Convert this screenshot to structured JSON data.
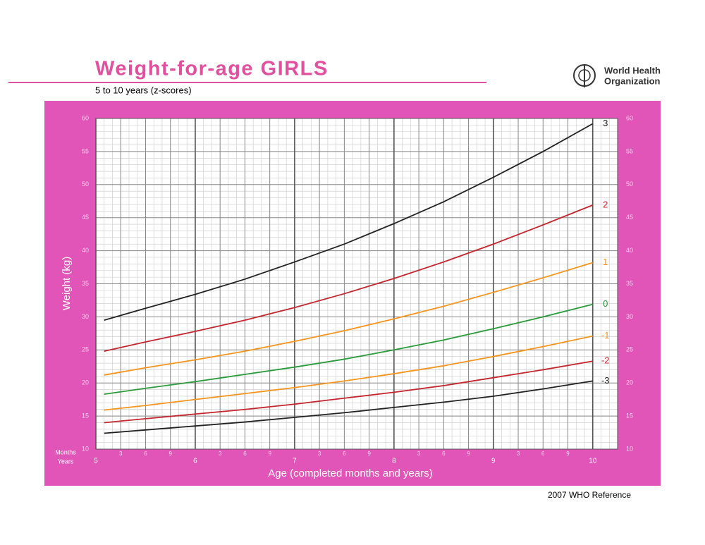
{
  "title": "Weight-for-age  GIRLS",
  "subtitle": "5 to 10 years (z-scores)",
  "org_name": [
    "World Health",
    "Organization"
  ],
  "footer": "2007 WHO Reference",
  "chart_data": {
    "type": "line",
    "x_label": "Age (completed months and years)",
    "y_label": "Weight (kg)",
    "months_label": "Months",
    "years_label": "Years",
    "x": [
      61,
      66,
      72,
      78,
      84,
      90,
      96,
      102,
      108,
      114,
      120
    ],
    "series": [
      {
        "name": "3",
        "color": "#222222",
        "values": [
          29.5,
          31.3,
          33.4,
          35.7,
          38.3,
          41.0,
          44.1,
          47.4,
          51.1,
          55.0,
          59.2
        ]
      },
      {
        "name": "2",
        "color": "#c4262e",
        "values": [
          24.8,
          26.2,
          27.8,
          29.5,
          31.4,
          33.5,
          35.8,
          38.3,
          41.0,
          43.9,
          46.9
        ]
      },
      {
        "name": "1",
        "color": "#f7941d",
        "values": [
          21.2,
          22.3,
          23.5,
          24.8,
          26.3,
          27.9,
          29.7,
          31.6,
          33.7,
          35.9,
          38.2
        ]
      },
      {
        "name": "0",
        "color": "#2a9b3a",
        "values": [
          18.3,
          19.2,
          20.2,
          21.3,
          22.4,
          23.6,
          25.0,
          26.5,
          28.2,
          30.0,
          31.9
        ]
      },
      {
        "name": "-1",
        "color": "#f7941d",
        "values": [
          15.9,
          16.6,
          17.5,
          18.4,
          19.3,
          20.3,
          21.4,
          22.6,
          24.0,
          25.5,
          27.1
        ]
      },
      {
        "name": "-2",
        "color": "#c4262e",
        "values": [
          14.0,
          14.6,
          15.3,
          16.0,
          16.8,
          17.7,
          18.6,
          19.6,
          20.8,
          22.0,
          23.3
        ]
      },
      {
        "name": "-3",
        "color": "#222222",
        "values": [
          12.4,
          12.9,
          13.5,
          14.1,
          14.8,
          15.5,
          16.3,
          17.1,
          18.0,
          19.1,
          20.3
        ]
      }
    ],
    "xlim": [
      60,
      123
    ],
    "ylim": [
      10,
      60
    ],
    "xticks": [
      {
        "value": 60,
        "label": "5"
      },
      {
        "value": 72,
        "label": "6"
      },
      {
        "value": 84,
        "label": "7"
      },
      {
        "value": 96,
        "label": "8"
      },
      {
        "value": 108,
        "label": "9"
      },
      {
        "value": 120,
        "label": "10"
      }
    ],
    "month_ticks": [
      {
        "value": 63,
        "label": "3"
      },
      {
        "value": 66,
        "label": "6"
      },
      {
        "value": 69,
        "label": "9"
      },
      {
        "value": 75,
        "label": "3"
      },
      {
        "value": 78,
        "label": "6"
      },
      {
        "value": 81,
        "label": "9"
      },
      {
        "value": 87,
        "label": "3"
      },
      {
        "value": 90,
        "label": "6"
      },
      {
        "value": 93,
        "label": "9"
      },
      {
        "value": 99,
        "label": "3"
      },
      {
        "value": 102,
        "label": "6"
      },
      {
        "value": 105,
        "label": "9"
      },
      {
        "value": 111,
        "label": "3"
      },
      {
        "value": 114,
        "label": "6"
      },
      {
        "value": 117,
        "label": "9"
      }
    ],
    "yticks": [
      10,
      15,
      20,
      25,
      30,
      35,
      40,
      45,
      50,
      55,
      60
    ],
    "grid": true
  }
}
